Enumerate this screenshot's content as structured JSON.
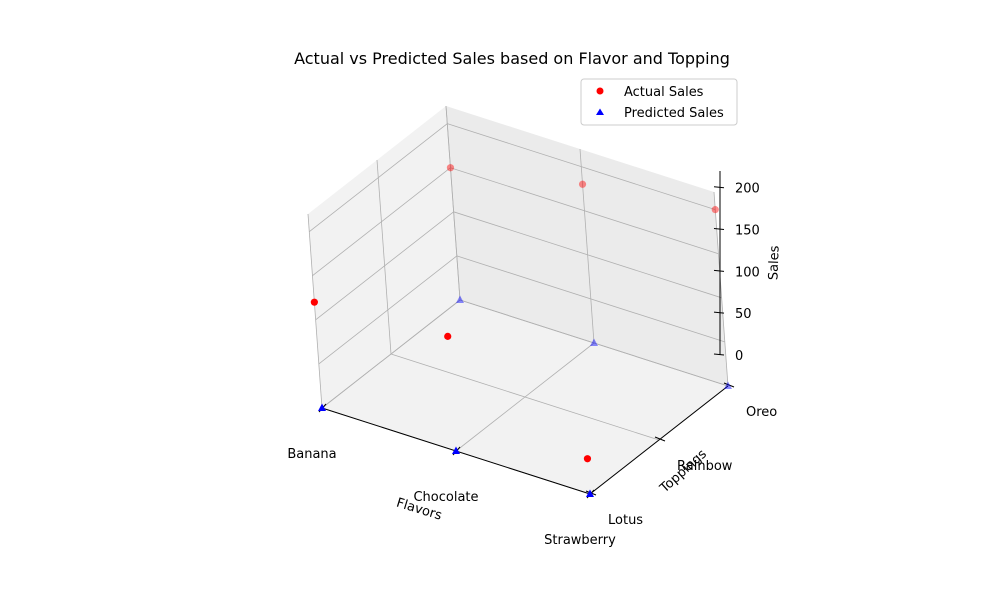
{
  "chart_data": {
    "type": "scatter",
    "projection": "3d",
    "title": "Actual vs Predicted Sales based on Flavor and Topping",
    "xlabel": "Flavors",
    "ylabel": "Toppings",
    "zlabel": "Sales",
    "x_categories": [
      "Banana",
      "Chocolate",
      "Strawberry"
    ],
    "y_categories": [
      "Lotus",
      "Rainbow",
      "Oreo"
    ],
    "zlim": [
      0,
      220
    ],
    "z_ticks": [
      0,
      50,
      100,
      150,
      200
    ],
    "grid": true,
    "legend_position": "top-right",
    "series": [
      {
        "name": "Actual Sales",
        "marker": "circle",
        "color": "#ff0000",
        "points": [
          {
            "flavor": "Banana",
            "topping": "Lotus",
            "sales": 120
          },
          {
            "flavor": "Banana",
            "topping": "Oreo",
            "sales": 150
          },
          {
            "flavor": "Chocolate",
            "topping": "Lotus",
            "sales": 130
          },
          {
            "flavor": "Chocolate",
            "topping": "Oreo",
            "sales": 180
          },
          {
            "flavor": "Strawberry",
            "topping": "Lotus",
            "sales": 40
          },
          {
            "flavor": "Strawberry",
            "topping": "Oreo",
            "sales": 200
          }
        ]
      },
      {
        "name": "Predicted Sales",
        "marker": "triangle",
        "color": "#0000ff",
        "points": [
          {
            "flavor": "Banana",
            "topping": "Lotus",
            "sales": 0
          },
          {
            "flavor": "Banana",
            "topping": "Oreo",
            "sales": 0
          },
          {
            "flavor": "Chocolate",
            "topping": "Lotus",
            "sales": 0
          },
          {
            "flavor": "Chocolate",
            "topping": "Oreo",
            "sales": 0
          },
          {
            "flavor": "Strawberry",
            "topping": "Lotus",
            "sales": 0
          },
          {
            "flavor": "Strawberry",
            "topping": "Oreo",
            "sales": 0
          }
        ]
      }
    ]
  }
}
